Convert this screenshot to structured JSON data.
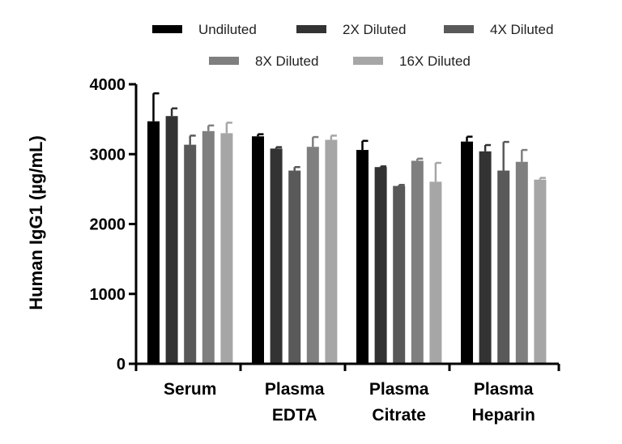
{
  "chart_data": {
    "type": "bar",
    "title": "",
    "xlabel": "",
    "ylabel": "Human IgG1 (µg/mL)",
    "ylim": [
      0,
      4000
    ],
    "yticks": [
      0,
      1000,
      2000,
      3000,
      4000
    ],
    "categories": [
      [
        "Serum"
      ],
      [
        "Plasma",
        "EDTA"
      ],
      [
        "Plasma",
        "Citrate"
      ],
      [
        "Plasma",
        "Heparin"
      ]
    ],
    "series": [
      {
        "name": "Undiluted",
        "color": "#000000",
        "values": [
          3470,
          3255,
          3060,
          3180
        ],
        "errors": [
          400,
          30,
          130,
          70
        ]
      },
      {
        "name": "2X Diluted",
        "color": "#333333",
        "values": [
          3545,
          3080,
          2815,
          3040
        ],
        "errors": [
          110,
          20,
          10,
          90
        ]
      },
      {
        "name": "4X Diluted",
        "color": "#595959",
        "values": [
          3135,
          2765,
          2545,
          2765
        ],
        "errors": [
          130,
          50,
          15,
          410
        ]
      },
      {
        "name": "8X Diluted",
        "color": "#7f7f7f",
        "values": [
          3330,
          3105,
          2905,
          2890
        ],
        "errors": [
          80,
          140,
          30,
          170
        ]
      },
      {
        "name": "16X Diluted",
        "color": "#a6a6a6",
        "values": [
          3300,
          3205,
          2605,
          2635
        ],
        "errors": [
          150,
          60,
          270,
          25
        ]
      }
    ],
    "legend_position": "top",
    "grid": false
  }
}
